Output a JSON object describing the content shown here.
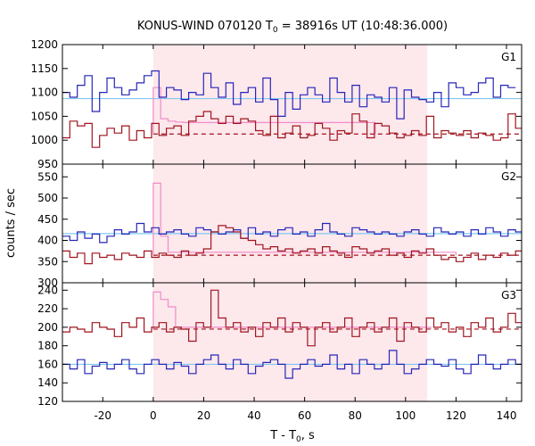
{
  "chart_data": {
    "type": "line",
    "title_main": "KONUS-WIND 070120 T",
    "title_sub": "0",
    "title_rest": " = 38916s UT (10:48:36.000)",
    "xlabel_main": "T - T",
    "xlabel_sub": "0",
    "xlabel_rest": ", s",
    "ylabel": "counts / sec",
    "xlim": [
      -36,
      146
    ],
    "xticks": [
      -20,
      0,
      20,
      40,
      60,
      80,
      100,
      120,
      140
    ],
    "shaded_interval": [
      0,
      108.6
    ],
    "bin_width": 2.944,
    "colors": {
      "blue_series": "#2626b8",
      "red_series": "#a0141e",
      "pink_series": "#f08cc8",
      "cyan_level": "#80c8f0",
      "shade": "#fde8ec"
    },
    "panels": [
      {
        "label": "G1",
        "ylim": [
          950,
          1200
        ],
        "yticks": [
          950,
          1000,
          1050,
          1100,
          1150,
          1200
        ],
        "blue_level": 1087,
        "red_level": 1013,
        "pink_values": [
          1110,
          1045,
          1040,
          1038
        ],
        "pink_plateau": 1037,
        "pink_end": 88,
        "blue_values": [
          1100,
          1090,
          1115,
          1135,
          1060,
          1100,
          1130,
          1110,
          1095,
          1105,
          1120,
          1135,
          1145,
          1090,
          1110,
          1105,
          1085,
          1100,
          1095,
          1140,
          1110,
          1090,
          1120,
          1075,
          1100,
          1110,
          1080,
          1130,
          1085,
          1050,
          1100,
          1065,
          1095,
          1110,
          1095,
          1080,
          1130,
          1100,
          1080,
          1115,
          1070,
          1095,
          1090,
          1080,
          1110,
          1045,
          1105,
          1090,
          1085,
          1080,
          1100,
          1070,
          1120,
          1110,
          1095,
          1100,
          1120,
          1130,
          1090,
          1115,
          1110
        ],
        "red_values": [
          1005,
          1040,
          1030,
          1035,
          985,
          1010,
          1025,
          1015,
          1030,
          1000,
          1020,
          1005,
          1035,
          1010,
          1025,
          1030,
          1010,
          1040,
          1050,
          1060,
          1045,
          1035,
          1050,
          1035,
          1045,
          1040,
          1020,
          1010,
          1050,
          1005,
          1015,
          1030,
          1005,
          1010,
          1035,
          1025,
          1000,
          1020,
          1015,
          1055,
          1040,
          1005,
          1035,
          1030,
          1015,
          1005,
          1010,
          1020,
          1010,
          1050,
          1005,
          1020,
          1015,
          1010,
          1020,
          1005,
          1015,
          1010,
          1000,
          1005,
          1055,
          1025
        ]
      },
      {
        "label": "G2",
        "ylim": [
          300,
          580
        ],
        "yticks": [
          300,
          350,
          400,
          450,
          500,
          550
        ],
        "blue_level": 416,
        "red_level": 365,
        "pink_values": [
          535,
          410
        ],
        "pink_plateau": 372,
        "pink_end": 120,
        "blue_values": [
          410,
          400,
          420,
          405,
          415,
          395,
          410,
          425,
          415,
          420,
          440,
          420,
          430,
          415,
          420,
          425,
          415,
          410,
          430,
          425,
          420,
          415,
          420,
          425,
          405,
          430,
          415,
          420,
          410,
          425,
          430,
          415,
          420,
          410,
          425,
          440,
          420,
          415,
          410,
          430,
          425,
          420,
          415,
          420,
          415,
          410,
          420,
          425,
          415,
          410,
          430,
          420,
          415,
          420,
          410,
          425,
          415,
          430,
          420,
          410,
          425,
          420
        ],
        "red_values": [
          375,
          360,
          370,
          345,
          370,
          360,
          365,
          355,
          370,
          365,
          360,
          375,
          360,
          370,
          365,
          360,
          375,
          365,
          370,
          380,
          420,
          435,
          430,
          420,
          405,
          400,
          390,
          380,
          385,
          375,
          380,
          370,
          375,
          380,
          370,
          385,
          375,
          370,
          360,
          385,
          380,
          370,
          375,
          380,
          365,
          370,
          360,
          375,
          370,
          380,
          365,
          355,
          360,
          350,
          360,
          370,
          355,
          365,
          360,
          370,
          365,
          375
        ]
      },
      {
        "label": "G3",
        "ylim": [
          120,
          248
        ],
        "yticks": [
          120,
          140,
          160,
          180,
          200,
          220,
          240
        ],
        "blue_level": 160,
        "red_level": 198,
        "pink_values": [
          238,
          230,
          222
        ],
        "pink_plateau": 200,
        "pink_end": 110,
        "blue_values": [
          160,
          155,
          165,
          150,
          158,
          162,
          155,
          160,
          165,
          155,
          150,
          160,
          165,
          160,
          155,
          162,
          158,
          150,
          160,
          165,
          170,
          160,
          155,
          165,
          160,
          150,
          158,
          162,
          165,
          160,
          145,
          155,
          160,
          165,
          158,
          160,
          170,
          155,
          160,
          150,
          165,
          160,
          155,
          160,
          175,
          160,
          150,
          155,
          160,
          165,
          160,
          158,
          165,
          155,
          150,
          160,
          170,
          160,
          155,
          160,
          165,
          160
        ],
        "red_values": [
          195,
          200,
          198,
          195,
          205,
          200,
          198,
          190,
          205,
          200,
          210,
          195,
          200,
          205,
          195,
          200,
          198,
          185,
          205,
          200,
          240,
          210,
          200,
          205,
          195,
          200,
          190,
          205,
          200,
          210,
          195,
          205,
          200,
          180,
          200,
          205,
          195,
          200,
          210,
          190,
          200,
          205,
          195,
          200,
          210,
          185,
          205,
          200,
          195,
          210,
          200,
          205,
          195,
          200,
          190,
          205,
          200,
          210,
          195,
          200,
          215,
          205
        ]
      }
    ]
  }
}
